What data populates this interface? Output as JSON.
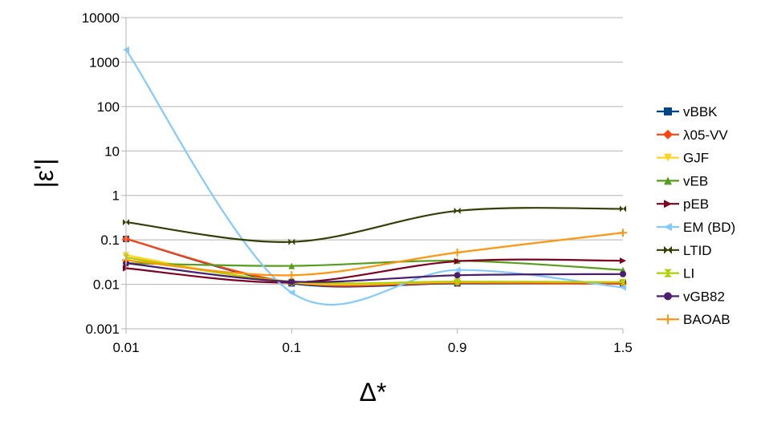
{
  "chart_data": {
    "type": "line",
    "x_scale": "categorical",
    "categories": [
      "0.01",
      "0.1",
      "0.9",
      "1.5"
    ],
    "y_scale": "log",
    "ylim": [
      0.001,
      10000
    ],
    "y_ticks": [
      "10000",
      "1000",
      "100",
      "10",
      "1",
      "0.1",
      "0.01",
      "0.001"
    ],
    "xlabel": "Δ*",
    "ylabel": "|ε'|",
    "grid": "horizontal",
    "legend_position": "right",
    "series": [
      {
        "name": "vBBK",
        "color": "#004586",
        "marker": "square",
        "values": [
          0.105,
          0.0105,
          0.0105,
          0.0105
        ]
      },
      {
        "name": "λ05-VV",
        "color": "#ff420e",
        "marker": "diamond",
        "values": [
          0.105,
          0.011,
          0.0108,
          0.0103
        ]
      },
      {
        "name": "GJF",
        "color": "#ffd320",
        "marker": "triangle-down",
        "values": [
          0.045,
          0.011,
          0.0113,
          0.0112
        ]
      },
      {
        "name": "vEB",
        "color": "#579d1c",
        "marker": "triangle-up",
        "values": [
          0.03,
          0.026,
          0.034,
          0.021
        ]
      },
      {
        "name": "pEB",
        "color": "#7e0021",
        "marker": "triangle-right",
        "values": [
          0.023,
          0.011,
          0.033,
          0.034
        ]
      },
      {
        "name": "EM (BD)",
        "color": "#83caff",
        "marker": "triangle-left",
        "values": [
          1900,
          0.0065,
          0.021,
          0.0085
        ]
      },
      {
        "name": "LTID",
        "color": "#314004",
        "marker": "bowtie",
        "values": [
          0.25,
          0.09,
          0.45,
          0.5
        ]
      },
      {
        "name": "LI",
        "color": "#aecf00",
        "marker": "hourglass",
        "values": [
          0.04,
          0.0115,
          0.0115,
          0.0112
        ]
      },
      {
        "name": "vGB82",
        "color": "#4b1f6f",
        "marker": "circle",
        "values": [
          0.03,
          0.0115,
          0.016,
          0.017
        ]
      },
      {
        "name": "BAOAB",
        "color": "#ff950e",
        "marker": "plus",
        "values": [
          0.035,
          0.016,
          0.052,
          0.145
        ]
      }
    ]
  }
}
